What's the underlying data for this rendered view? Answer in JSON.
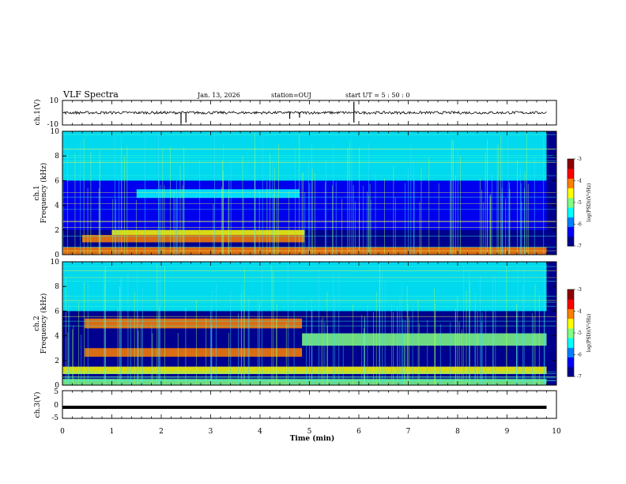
{
  "header": {
    "title": "VLF Spectra",
    "date": "Jan. 13, 2026",
    "station": "station=OUJ",
    "start": "start UT =  5 : 50 : 0"
  },
  "panels": {
    "ch1_wave": {
      "ylabel": "ch.1(V)",
      "yticks": [
        "10",
        "-10"
      ]
    },
    "ch1_spec": {
      "ylabel": "ch.1\nFrequency (kHz)",
      "yticks": [
        "0",
        "2",
        "4",
        "6",
        "8",
        "10"
      ]
    },
    "ch2_spec": {
      "ylabel": "ch.2\nFrequency (kHz)",
      "yticks": [
        "0",
        "2",
        "4",
        "6",
        "8",
        "10"
      ]
    },
    "ch3_wave": {
      "ylabel": "ch.3(V)",
      "yticks": [
        "5",
        "0",
        "-5"
      ]
    }
  },
  "colorbar": {
    "label": "log(PSD)(V²/Hz)",
    "ticks": [
      "-3",
      "-4",
      "-5",
      "-6",
      "-7"
    ],
    "colors": [
      "#00008f",
      "#0000ff",
      "#0080ff",
      "#00ffff",
      "#80ff80",
      "#ffff00",
      "#ff8000",
      "#ff0000",
      "#8f0000"
    ]
  },
  "chart_data": [
    {
      "type": "line",
      "name": "ch1_waveform",
      "ylabel": "ch.1(V)",
      "xlim": [
        0,
        10
      ],
      "ylim": [
        -10,
        10
      ],
      "baseline": 0,
      "spikes": [
        {
          "t": 2.4,
          "v": -9
        },
        {
          "t": 2.5,
          "v": -8
        },
        {
          "t": 4.6,
          "v": -5
        },
        {
          "t": 4.8,
          "v": -4
        },
        {
          "t": 5.9,
          "v": 9
        },
        {
          "t": 5.9,
          "v": -8
        }
      ]
    },
    {
      "type": "heatmap",
      "name": "ch1_spectrogram",
      "xlabel": "Time (min)",
      "ylabel": "Frequency (kHz)",
      "xlim": [
        0,
        10
      ],
      "ylim": [
        0,
        10
      ],
      "zlim": [
        -7,
        -3
      ],
      "features": [
        {
          "f0": 0.0,
          "f1": 0.6,
          "t0": 0.0,
          "t1": 9.8,
          "level": -4.0
        },
        {
          "f0": 1.0,
          "f1": 1.6,
          "t0": 0.4,
          "t1": 4.9,
          "level": -4.3
        },
        {
          "f0": 1.6,
          "f1": 2.0,
          "t0": 1.0,
          "t1": 4.9,
          "level": -4.6
        },
        {
          "f0": 4.6,
          "f1": 5.3,
          "t0": 1.5,
          "t1": 4.8,
          "level": -5.3
        },
        {
          "f0": 6.0,
          "f1": 10.0,
          "t0": 0.0,
          "t1": 9.8,
          "level": -5.6
        },
        {
          "f0": 2.0,
          "f1": 6.0,
          "t0": 0.0,
          "t1": 9.8,
          "level": -6.4
        }
      ]
    },
    {
      "type": "heatmap",
      "name": "ch2_spectrogram",
      "xlabel": "Time (min)",
      "ylabel": "Frequency (kHz)",
      "xlim": [
        0,
        10
      ],
      "ylim": [
        0,
        10
      ],
      "zlim": [
        -7,
        -3
      ],
      "features": [
        {
          "f0": 4.6,
          "f1": 5.4,
          "t0": 0.45,
          "t1": 4.85,
          "level": -4.2
        },
        {
          "f0": 2.3,
          "f1": 3.0,
          "t0": 0.45,
          "t1": 4.85,
          "level": -4.3
        },
        {
          "f0": 0.9,
          "f1": 1.5,
          "t0": 0.0,
          "t1": 9.8,
          "level": -4.5
        },
        {
          "f0": 3.2,
          "f1": 4.2,
          "t0": 4.85,
          "t1": 9.8,
          "level": -5.0
        },
        {
          "f0": 6.0,
          "f1": 10.0,
          "t0": 0.0,
          "t1": 9.8,
          "level": -5.4
        },
        {
          "f0": 0.0,
          "f1": 0.5,
          "t0": 0.0,
          "t1": 9.8,
          "level": -4.8
        }
      ]
    },
    {
      "type": "line",
      "name": "ch3_waveform",
      "ylabel": "ch.3(V)",
      "xlabel": "Time (min)",
      "xlim": [
        0,
        10
      ],
      "ylim": [
        -5,
        5
      ],
      "x": [
        0,
        9.8
      ],
      "y": [
        -1,
        -1
      ]
    }
  ],
  "xaxis": {
    "label": "Time (min)",
    "ticks": [
      "0",
      "1",
      "2",
      "3",
      "4",
      "5",
      "6",
      "7",
      "8",
      "9",
      "10"
    ]
  }
}
